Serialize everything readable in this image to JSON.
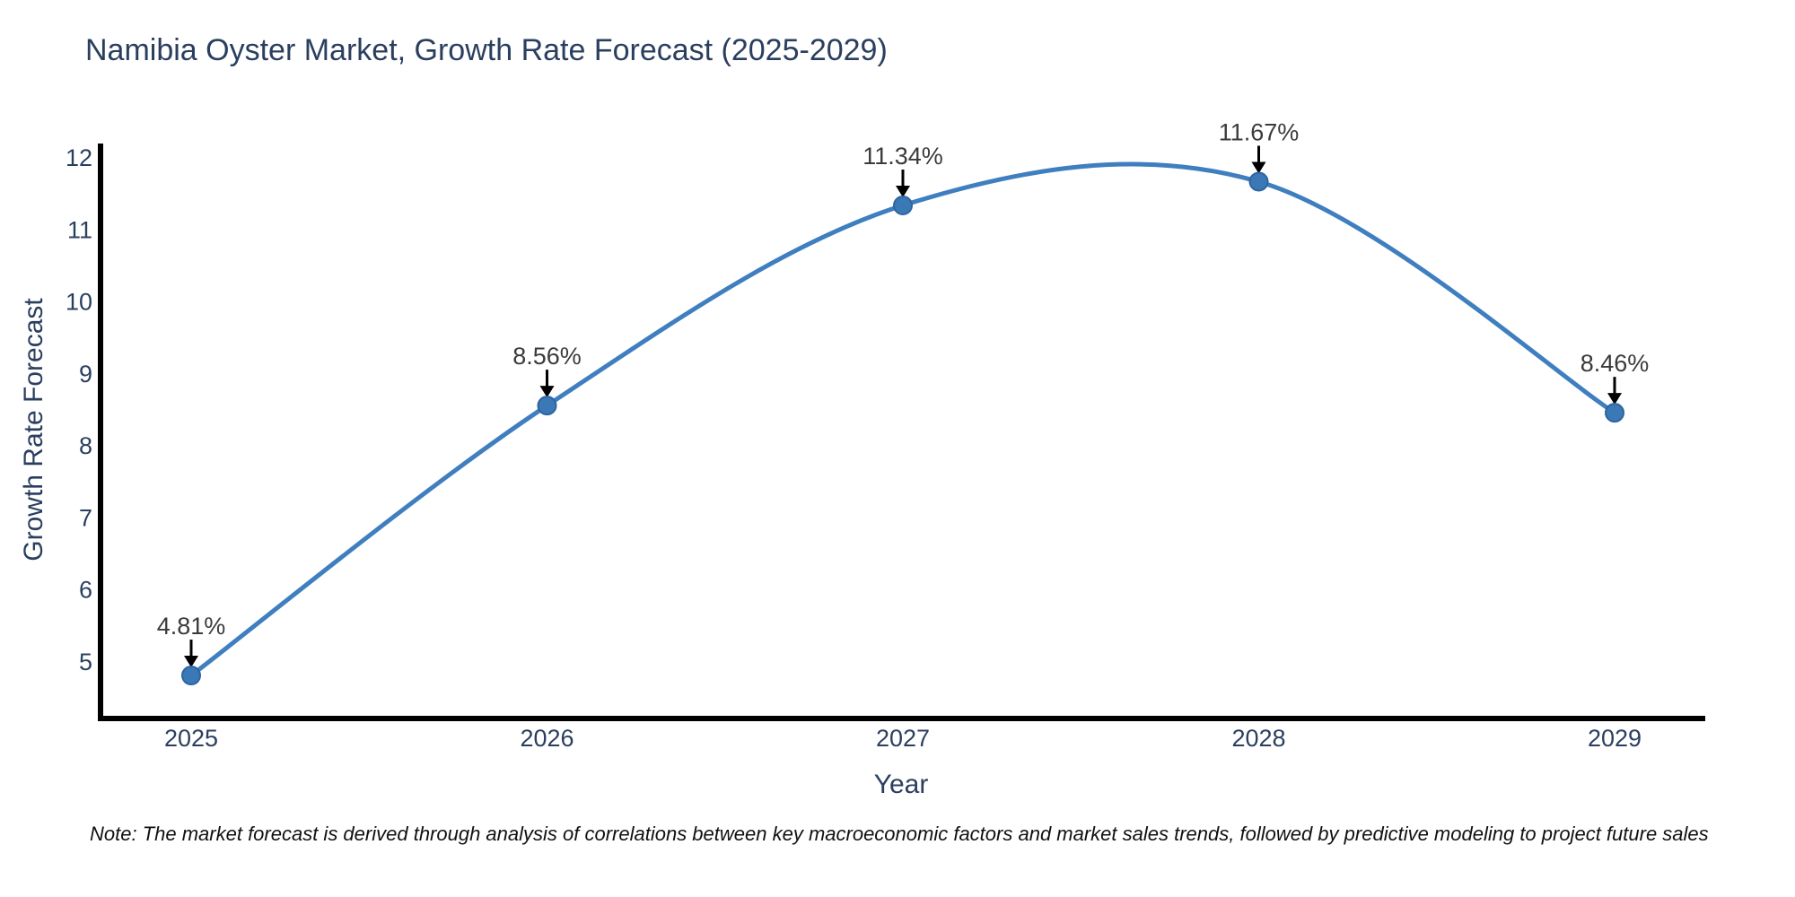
{
  "chart_title": "Namibia Oyster Market, Growth Rate Forecast (2025-2029)",
  "note": {
    "text": "Note: The market forecast is derived through analysis of correlations between key macroeconomic factors and market sales trends, followed by predictive modeling to project future sales"
  },
  "chart_data": {
    "type": "line",
    "line_shape": "spline",
    "title": "Namibia Oyster Market, Growth Rate Forecast (2025-2029)",
    "xlabel": "Year",
    "ylabel": "Growth Rate Forecast",
    "categories": [
      "2025",
      "2026",
      "2027",
      "2028",
      "2029"
    ],
    "series": [
      {
        "name": "Growth Rate Forecast",
        "values": [
          4.81,
          8.56,
          11.34,
          11.67,
          8.46
        ]
      }
    ],
    "point_labels": [
      "4.81%",
      "8.56%",
      "11.34%",
      "11.67%",
      "8.46%"
    ],
    "yticks": [
      5,
      6,
      7,
      8,
      9,
      10,
      11,
      12
    ],
    "ylim": [
      4.25,
      12.2
    ],
    "grid": false,
    "legend_position": "none",
    "markers": true,
    "annotations_have_arrows": true,
    "colors": {
      "line": "#3f7fbf",
      "marker_fill": "#3a78b6",
      "marker_edge": "#2e659f",
      "axis_line": "#000000",
      "tick_text": "#2a3f5f",
      "axis_title_text": "#2a3f5f",
      "title_text": "#2a3f5f",
      "annotation_text": "#3b3b3b",
      "annotation_arrow": "#000000",
      "background": "#ffffff"
    }
  }
}
